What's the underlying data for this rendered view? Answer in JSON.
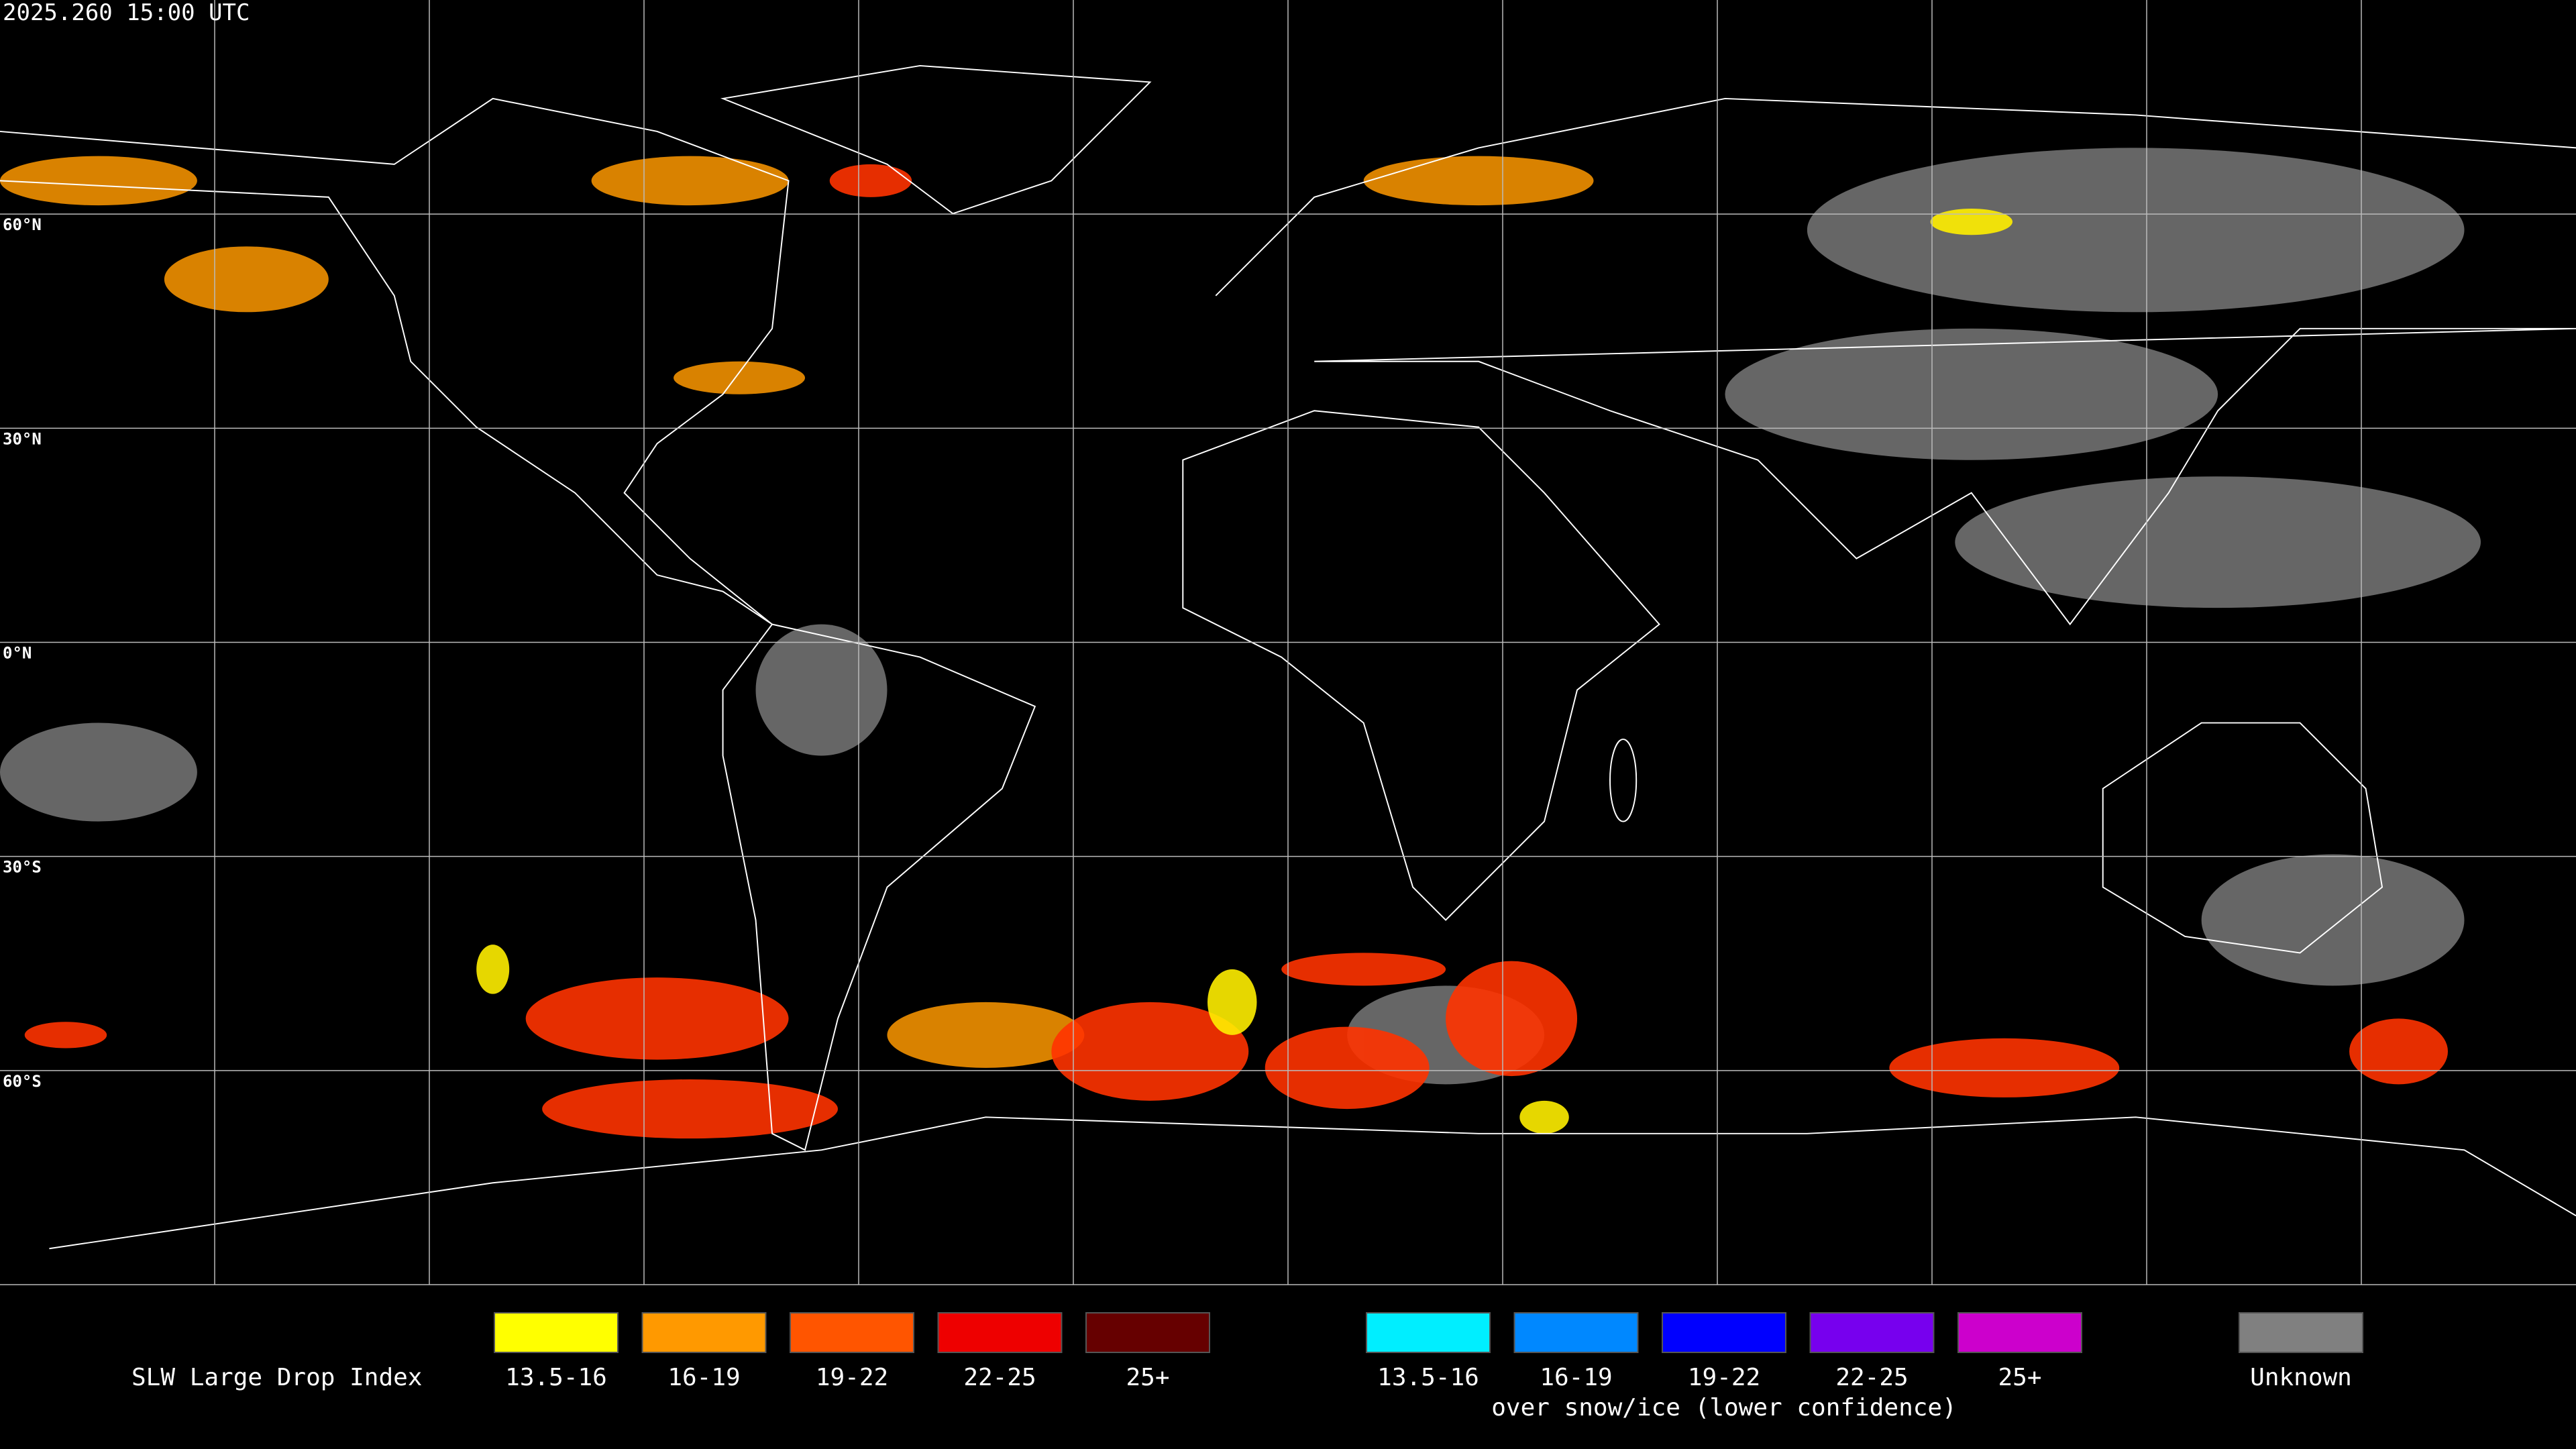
{
  "header": {
    "timestamp": "2025.260 15:00 UTC"
  },
  "map": {
    "latitude_labels": [
      "60°N",
      "30°N",
      "0°N",
      "30°S",
      "60°S"
    ]
  },
  "legend": {
    "title": "SLW Large Drop Index",
    "groups": [
      {
        "items": [
          {
            "label": "13.5-16",
            "color": "#ffff00"
          },
          {
            "label": "16-19",
            "color": "#ff9900"
          },
          {
            "label": "19-22",
            "color": "#ff5500"
          },
          {
            "label": "22-25",
            "color": "#ee0000"
          },
          {
            "label": "25+",
            "color": "#660000"
          }
        ]
      },
      {
        "note": "over snow/ice (lower confidence)",
        "items": [
          {
            "label": "13.5-16",
            "color": "#00eeff"
          },
          {
            "label": "16-19",
            "color": "#0088ff"
          },
          {
            "label": "19-22",
            "color": "#0000ff"
          },
          {
            "label": "22-25",
            "color": "#7700ee"
          },
          {
            "label": "25+",
            "color": "#cc00cc"
          }
        ]
      },
      {
        "items": [
          {
            "label": "Unknown",
            "color": "#808080"
          }
        ]
      }
    ]
  }
}
